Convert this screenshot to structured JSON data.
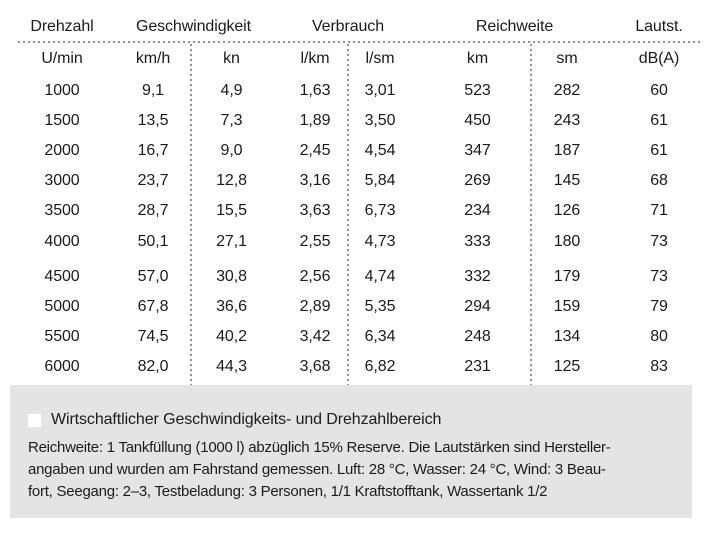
{
  "colors": {
    "column_dark": "#d5d5d5",
    "column_light": "#e4e4e4",
    "highlight_row": "#ffffff",
    "footer_panel": "#e4e4e4",
    "dotted_rule": "#919191",
    "text": "#1b1b1b"
  },
  "table": {
    "groups": [
      {
        "label": "Drehzahl",
        "span": 1,
        "shade": "dark"
      },
      {
        "label": "Geschwindigkeit",
        "span": 2,
        "shade": "light"
      },
      {
        "label": "Verbrauch",
        "span": 2,
        "shade": "dark"
      },
      {
        "label": "Reichweite",
        "span": 2,
        "shade": "light"
      },
      {
        "label": "Lautst.",
        "span": 1,
        "shade": "dark"
      }
    ],
    "units": [
      "U/min",
      "km/h",
      "kn",
      "l/km",
      "l/sm",
      "km",
      "sm",
      "dB(A)"
    ],
    "rows": [
      {
        "values": [
          "1000",
          "9,1",
          "4,9",
          "1,63",
          "3,01",
          "523",
          "282",
          "60"
        ],
        "highlight": false
      },
      {
        "values": [
          "1500",
          "13,5",
          "7,3",
          "1,89",
          "3,50",
          "450",
          "243",
          "61"
        ],
        "highlight": false
      },
      {
        "values": [
          "2000",
          "16,7",
          "9,0",
          "2,45",
          "4,54",
          "347",
          "187",
          "61"
        ],
        "highlight": false
      },
      {
        "values": [
          "3000",
          "23,7",
          "12,8",
          "3,16",
          "5,84",
          "269",
          "145",
          "68"
        ],
        "highlight": false
      },
      {
        "values": [
          "3500",
          "28,7",
          "15,5",
          "3,63",
          "6,73",
          "234",
          "126",
          "71"
        ],
        "highlight": false
      },
      {
        "values": [
          "4000",
          "50,1",
          "27,1",
          "2,55",
          "4,73",
          "333",
          "180",
          "73"
        ],
        "highlight": true
      },
      {
        "values": [
          "4500",
          "57,0",
          "30,8",
          "2,56",
          "4,74",
          "332",
          "179",
          "73"
        ],
        "highlight": false
      },
      {
        "values": [
          "5000",
          "67,8",
          "36,6",
          "2,89",
          "5,35",
          "294",
          "159",
          "79"
        ],
        "highlight": false
      },
      {
        "values": [
          "5500",
          "74,5",
          "40,2",
          "3,42",
          "6,34",
          "248",
          "134",
          "80"
        ],
        "highlight": false
      },
      {
        "values": [
          "6000",
          "82,0",
          "44,3",
          "3,68",
          "6,82",
          "231",
          "125",
          "83"
        ],
        "highlight": false
      }
    ]
  },
  "legend": {
    "label": "Wirtschaftlicher Geschwindigkeits- und Drehzahlbereich"
  },
  "footnote": {
    "lines": [
      "Reichweite: 1 Tankfüllung (1000 l) abzüglich 15% Reserve. Die Lautstärken sind Hersteller-",
      "angaben und wurden am Fahrstand gemessen. Luft: 28 °C, Wasser: 24 °C, Wind: 3 Beau-",
      "fort, Seegang: 2–3, Testbeladung: 3 Personen, 1/1 Kraftstofftank, Wassertank 1/2"
    ]
  }
}
